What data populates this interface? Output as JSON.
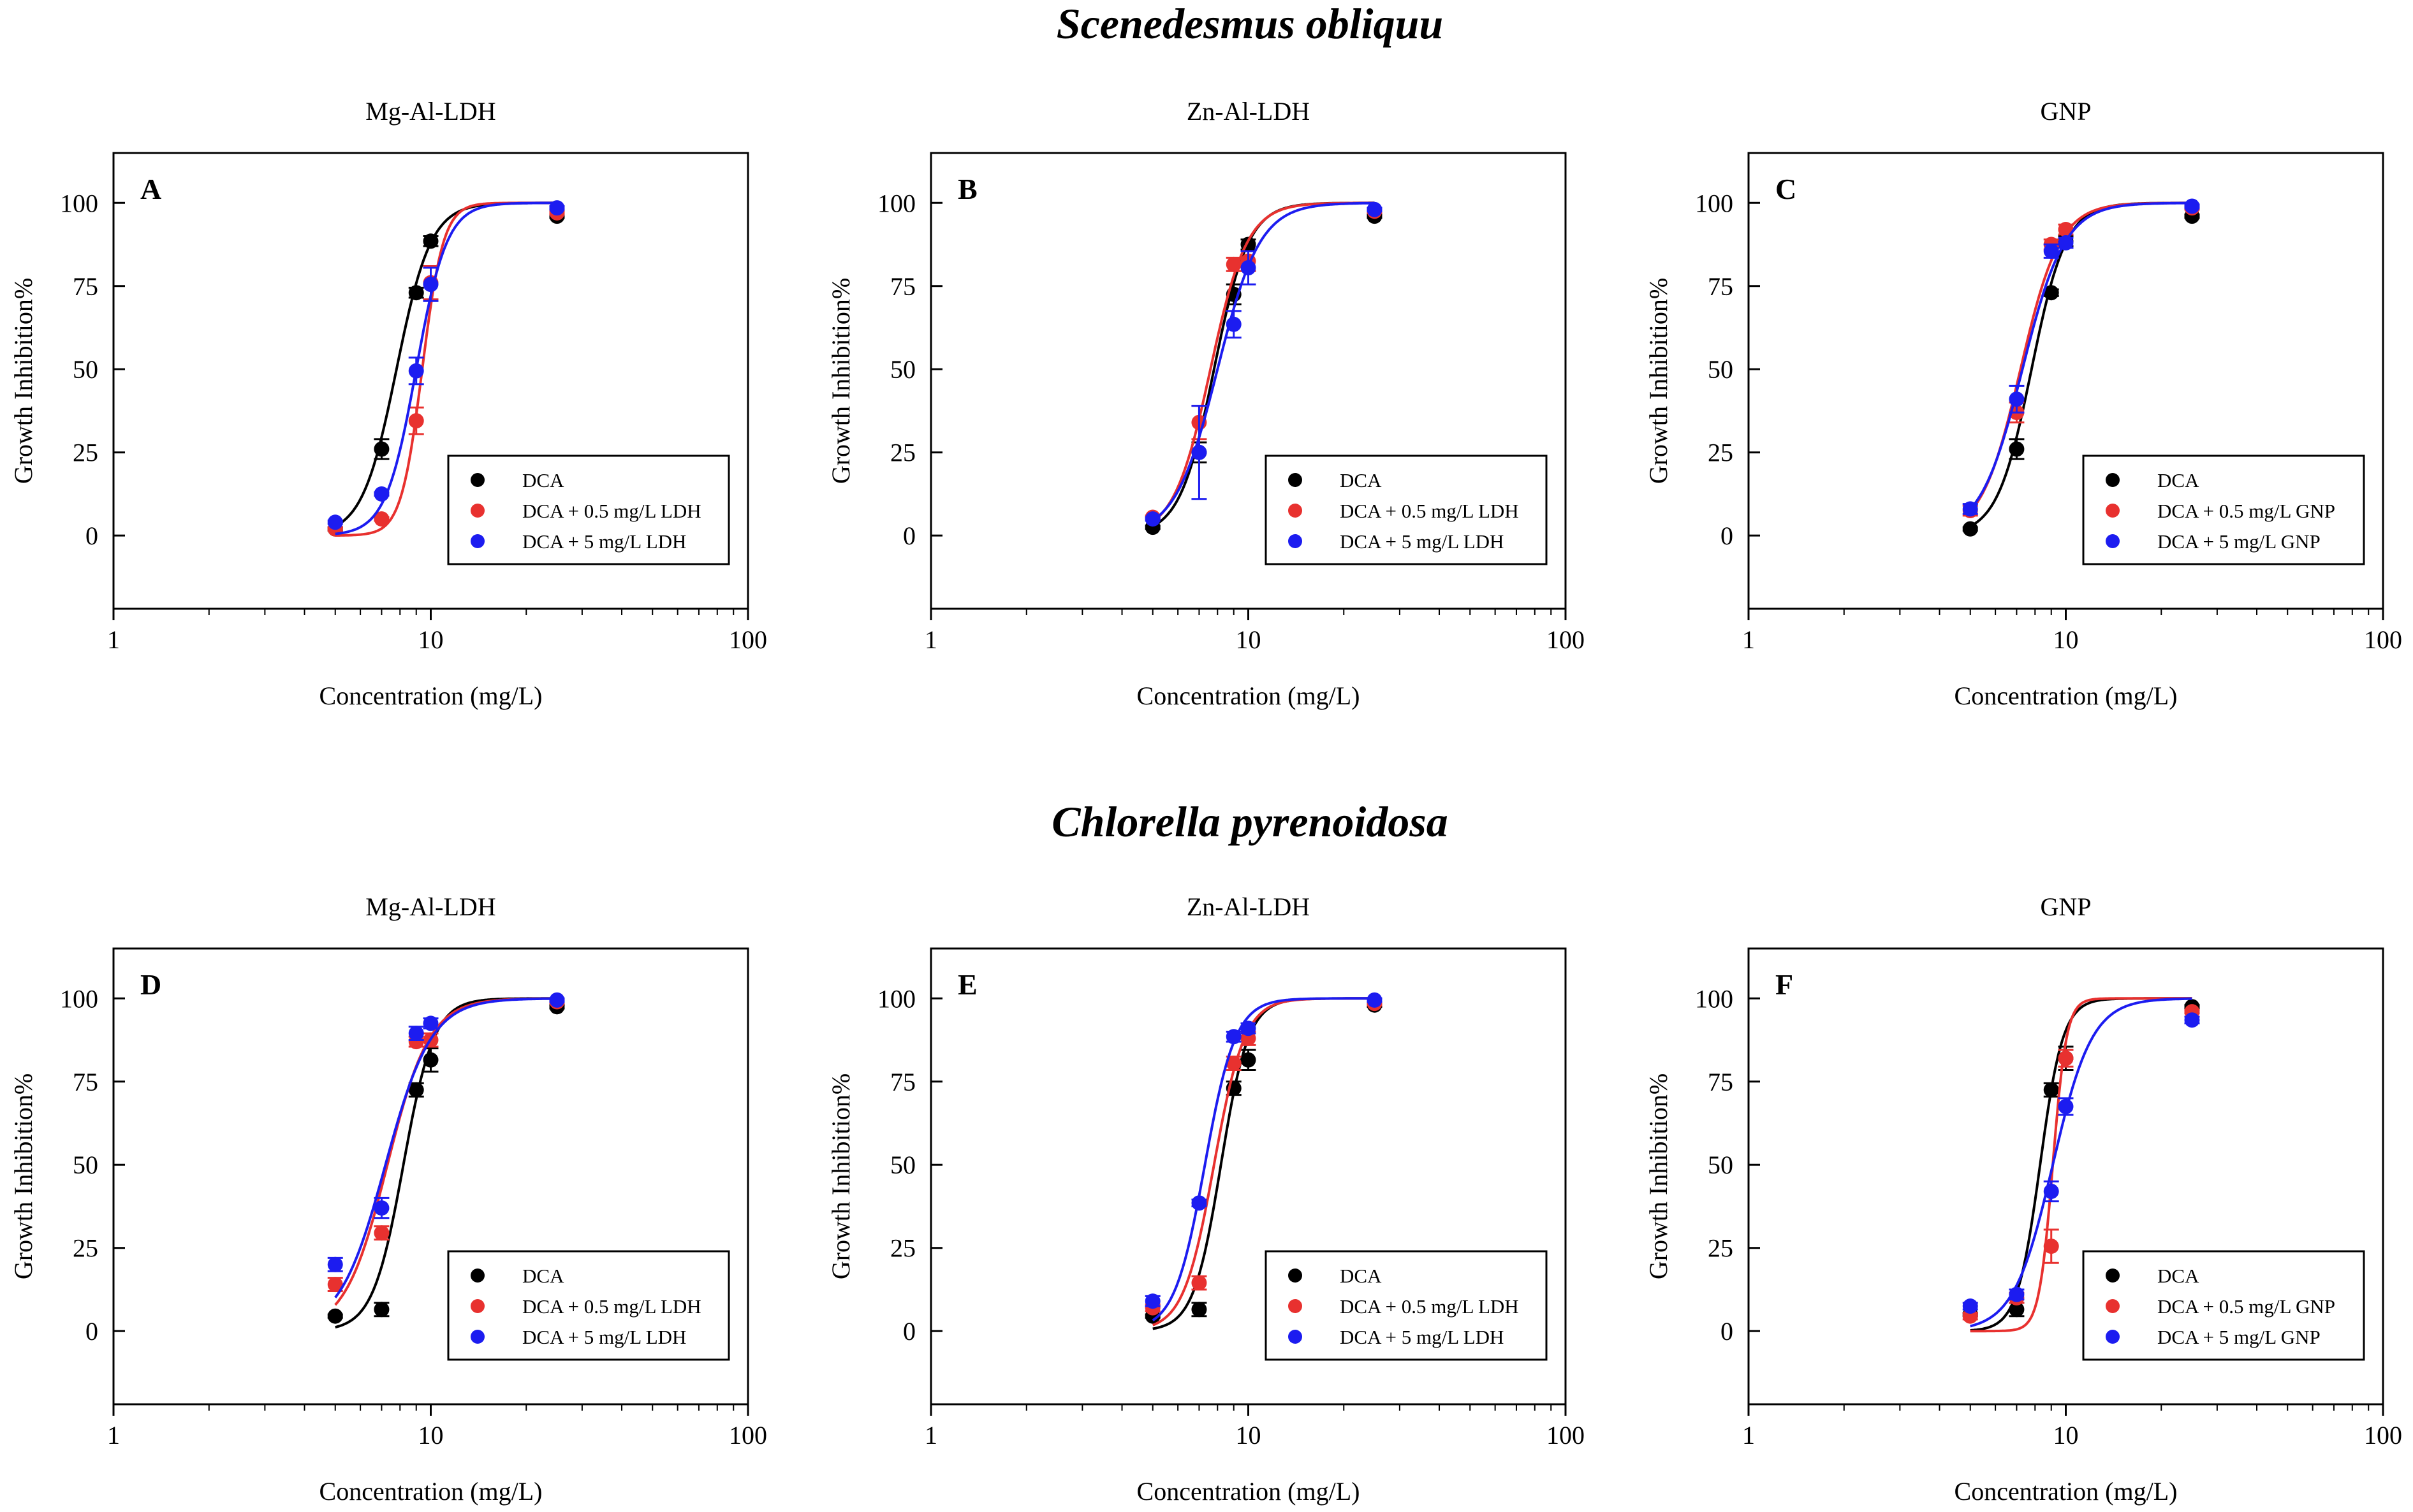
{
  "figure": {
    "row_titles": [
      "Scenedesmus obliquu",
      "Chlorella pyrenoidosa"
    ]
  },
  "colors": {
    "DCA": "#000000",
    "DCA_LOW": "#e8312f",
    "DCA_HIGH": "#1c1cf0"
  },
  "chart_data": [
    {
      "type": "scatter",
      "panel_letter": "A",
      "title": "Mg-Al-LDH",
      "xlabel": "Concentration (mg/L)",
      "ylabel": "Growth Inhibition%",
      "xscale": "log",
      "xlim": [
        1,
        100
      ],
      "ylim": [
        -22,
        115
      ],
      "xticks": [
        1,
        10,
        100
      ],
      "xtick_labels": [
        "1",
        "10",
        "100"
      ],
      "yticks": [
        0,
        25,
        50,
        75,
        100
      ],
      "ytick_labels": [
        "0",
        "25",
        "50",
        "75",
        "100"
      ],
      "legend_position": "lower-right",
      "series": [
        {
          "name": "DCA",
          "color": "#000000",
          "ec50": 7.8,
          "slope": 8,
          "x": [
            5,
            7,
            9,
            10,
            25
          ],
          "y": [
            2,
            26,
            73,
            88.5,
            96
          ],
          "err": [
            0.5,
            3,
            1.5,
            1.5,
            0.5
          ]
        },
        {
          "name": "DCA + 0.5 mg/L LDH",
          "color": "#e8312f",
          "ec50": 9.4,
          "slope": 13,
          "x": [
            5,
            7,
            9,
            10,
            25
          ],
          "y": [
            2,
            5,
            34.5,
            76,
            97
          ],
          "err": [
            0.5,
            0.5,
            4,
            5,
            0.5
          ]
        },
        {
          "name": "DCA + 5 mg/L LDH",
          "color": "#1c1cf0",
          "ec50": 9.0,
          "slope": 9,
          "x": [
            5,
            7,
            9,
            10,
            25
          ],
          "y": [
            4,
            12.5,
            49.5,
            75.5,
            98.5
          ],
          "err": [
            0.5,
            0.5,
            4,
            5,
            0.5
          ]
        }
      ]
    },
    {
      "type": "scatter",
      "panel_letter": "B",
      "title": "Zn-Al-LDH",
      "xlabel": "Concentration (mg/L)",
      "ylabel": "Growth Inhibition%",
      "xscale": "log",
      "xlim": [
        1,
        100
      ],
      "ylim": [
        -22,
        115
      ],
      "xticks": [
        1,
        10,
        100
      ],
      "xtick_labels": [
        "1",
        "10",
        "100"
      ],
      "yticks": [
        0,
        25,
        50,
        75,
        100
      ],
      "ytick_labels": [
        "0",
        "25",
        "50",
        "75",
        "100"
      ],
      "legend_position": "lower-right",
      "series": [
        {
          "name": "DCA",
          "color": "#000000",
          "ec50": 7.8,
          "slope": 8,
          "x": [
            5,
            7,
            9,
            10,
            25
          ],
          "y": [
            2.5,
            25,
            72.5,
            87.5,
            96
          ],
          "err": [
            0.5,
            3,
            3,
            1.5,
            0.5
          ]
        },
        {
          "name": "DCA + 0.5 mg/L LDH",
          "color": "#e8312f",
          "ec50": 7.6,
          "slope": 7.5,
          "x": [
            5,
            7,
            9,
            10,
            25
          ],
          "y": [
            5.5,
            34,
            81.5,
            82.5,
            97.5
          ],
          "err": [
            0.5,
            5,
            2,
            3,
            0.5
          ]
        },
        {
          "name": "DCA + 5 mg/L LDH",
          "color": "#1c1cf0",
          "ec50": 8.0,
          "slope": 6.5,
          "x": [
            5,
            7,
            9,
            10,
            25
          ],
          "y": [
            5,
            25,
            63.5,
            80.5,
            98
          ],
          "err": [
            0.5,
            14,
            4,
            5,
            0.5
          ]
        }
      ]
    },
    {
      "type": "scatter",
      "panel_letter": "C",
      "title": "GNP",
      "xlabel": "Concentration (mg/L)",
      "ylabel": "Growth Inhibition%",
      "xscale": "log",
      "xlim": [
        1,
        100
      ],
      "ylim": [
        -22,
        115
      ],
      "xticks": [
        1,
        10,
        100
      ],
      "xtick_labels": [
        "1",
        "10",
        "100"
      ],
      "yticks": [
        0,
        25,
        50,
        75,
        100
      ],
      "ytick_labels": [
        "0",
        "25",
        "50",
        "75",
        "100"
      ],
      "legend_position": "lower-right",
      "series": [
        {
          "name": "DCA",
          "color": "#000000",
          "ec50": 7.8,
          "slope": 8,
          "x": [
            5,
            7,
            9,
            10,
            25
          ],
          "y": [
            2,
            26,
            73,
            88.5,
            96
          ],
          "err": [
            0.5,
            3,
            1,
            1.5,
            0.5
          ]
        },
        {
          "name": "DCA + 0.5 mg/L GNP",
          "color": "#e8312f",
          "ec50": 7.2,
          "slope": 7,
          "x": [
            5,
            7,
            9,
            10,
            25
          ],
          "y": [
            7.5,
            37,
            87.5,
            92,
            98.5
          ],
          "err": [
            1.5,
            3,
            1.5,
            1.5,
            0.5
          ]
        },
        {
          "name": "DCA + 5 mg/L GNP",
          "color": "#1c1cf0",
          "ec50": 7.3,
          "slope": 6.5,
          "x": [
            5,
            7,
            9,
            10,
            25
          ],
          "y": [
            8,
            41,
            85.5,
            88,
            99
          ],
          "err": [
            1.5,
            4,
            2,
            1.5,
            0.5
          ]
        }
      ]
    },
    {
      "type": "scatter",
      "panel_letter": "D",
      "title": "Mg-Al-LDH",
      "xlabel": "Concentration (mg/L)",
      "ylabel": "Growth Inhibition%",
      "xscale": "log",
      "xlim": [
        1,
        100
      ],
      "ylim": [
        -22,
        115
      ],
      "xticks": [
        1,
        10,
        100
      ],
      "xtick_labels": [
        "1",
        "10",
        "100"
      ],
      "yticks": [
        0,
        25,
        50,
        75,
        100
      ],
      "ytick_labels": [
        "0",
        "25",
        "50",
        "75",
        "100"
      ],
      "legend_position": "lower-right",
      "series": [
        {
          "name": "DCA",
          "color": "#000000",
          "ec50": 8.2,
          "slope": 9,
          "x": [
            5,
            7,
            9,
            10,
            25
          ],
          "y": [
            4.5,
            6.5,
            72.5,
            81.5,
            97.5
          ],
          "err": [
            0.5,
            2,
            2,
            3.5,
            0.5
          ]
        },
        {
          "name": "DCA + 0.5 mg/L LDH",
          "color": "#e8312f",
          "ec50": 7.3,
          "slope": 6.5,
          "x": [
            5,
            7,
            9,
            10,
            25
          ],
          "y": [
            14,
            29.5,
            87,
            87.5,
            99
          ],
          "err": [
            2,
            2,
            1.5,
            2,
            0.5
          ]
        },
        {
          "name": "DCA + 5 mg/L LDH",
          "color": "#1c1cf0",
          "ec50": 7.2,
          "slope": 6,
          "x": [
            5,
            7,
            9,
            10,
            25
          ],
          "y": [
            20,
            37,
            89.5,
            92.5,
            99.5
          ],
          "err": [
            2,
            3,
            2,
            1.5,
            0.5
          ]
        }
      ]
    },
    {
      "type": "scatter",
      "panel_letter": "E",
      "title": "Zn-Al-LDH",
      "xlabel": "Concentration (mg/L)",
      "ylabel": "Growth Inhibition%",
      "xscale": "log",
      "xlim": [
        1,
        100
      ],
      "ylim": [
        -22,
        115
      ],
      "xticks": [
        1,
        10,
        100
      ],
      "xtick_labels": [
        "1",
        "10",
        "100"
      ],
      "yticks": [
        0,
        25,
        50,
        75,
        100
      ],
      "ytick_labels": [
        "0",
        "25",
        "50",
        "75",
        "100"
      ],
      "legend_position": "lower-right",
      "series": [
        {
          "name": "DCA",
          "color": "#000000",
          "ec50": 8.2,
          "slope": 10,
          "x": [
            5,
            7,
            9,
            10,
            25
          ],
          "y": [
            4.5,
            6.5,
            73,
            81.5,
            98
          ],
          "err": [
            0.5,
            2,
            2,
            3,
            0.5
          ]
        },
        {
          "name": "DCA + 0.5 mg/L LDH",
          "color": "#e8312f",
          "ec50": 7.8,
          "slope": 9,
          "x": [
            5,
            7,
            9,
            10,
            25
          ],
          "y": [
            7,
            14.5,
            80.5,
            88,
            98.5
          ],
          "err": [
            1,
            2,
            2,
            2,
            0.5
          ]
        },
        {
          "name": "DCA + 5 mg/L LDH",
          "color": "#1c1cf0",
          "ec50": 7.3,
          "slope": 9,
          "x": [
            5,
            7,
            9,
            10,
            25
          ],
          "y": [
            9,
            38.5,
            88.5,
            91,
            99.5
          ],
          "err": [
            1.5,
            1,
            1.5,
            1.5,
            0.5
          ]
        }
      ]
    },
    {
      "type": "scatter",
      "panel_letter": "F",
      "title": "GNP",
      "xlabel": "Concentration (mg/L)",
      "ylabel": "Growth Inhibition%",
      "xscale": "log",
      "xlim": [
        1,
        100
      ],
      "ylim": [
        -22,
        115
      ],
      "xticks": [
        1,
        10,
        100
      ],
      "xtick_labels": [
        "1",
        "10",
        "100"
      ],
      "yticks": [
        0,
        25,
        50,
        75,
        100
      ],
      "ytick_labels": [
        "0",
        "25",
        "50",
        "75",
        "100"
      ],
      "legend_position": "lower-right",
      "series": [
        {
          "name": "DCA",
          "color": "#000000",
          "ec50": 8.3,
          "slope": 12,
          "x": [
            5,
            7,
            9,
            10,
            25
          ],
          "y": [
            5,
            6.5,
            72.5,
            82,
            97.5
          ],
          "err": [
            0.5,
            2,
            2,
            3.5,
            0.5
          ]
        },
        {
          "name": "DCA + 0.5 mg/L GNP",
          "color": "#e8312f",
          "ec50": 9.1,
          "slope": 20,
          "x": [
            5,
            7,
            9,
            10,
            25
          ],
          "y": [
            4.5,
            10,
            25.5,
            82,
            96
          ],
          "err": [
            1,
            1.5,
            5,
            2.5,
            0.5
          ]
        },
        {
          "name": "DCA + 5 mg/L GNP",
          "color": "#1c1cf0",
          "ec50": 9.1,
          "slope": 7,
          "x": [
            5,
            7,
            9,
            10,
            25
          ],
          "y": [
            7.5,
            11,
            42,
            67.5,
            93.5
          ],
          "err": [
            1,
            1.5,
            3,
            2.5,
            1
          ]
        }
      ]
    }
  ]
}
